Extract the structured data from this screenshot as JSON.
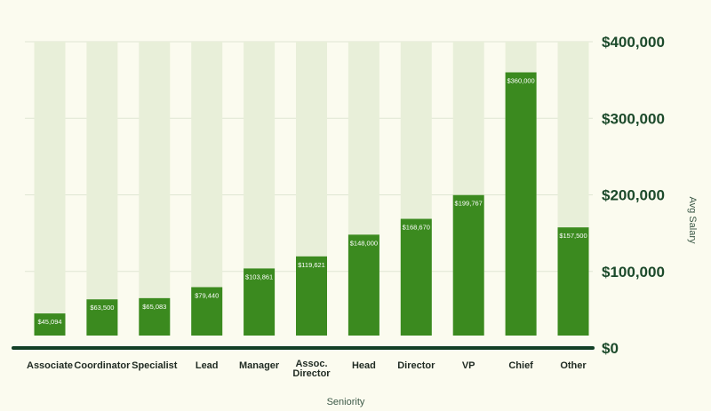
{
  "chart_data": {
    "type": "bar",
    "title": "",
    "xlabel": "Seniority",
    "ylabel": "Avg Salary",
    "ylim": [
      0,
      400000
    ],
    "yticks": [
      0,
      100000,
      200000,
      300000,
      400000
    ],
    "ytick_labels": [
      "$0",
      "$100,000",
      "$200,000",
      "$300,000",
      "$400,000"
    ],
    "grid": true,
    "categories": [
      "Associate",
      "Coordinator",
      "Specialist",
      "Lead",
      "Manager",
      "Assoc. Director",
      "Head",
      "Director",
      "VP",
      "Chief",
      "Other"
    ],
    "values": [
      45094,
      63500,
      65083,
      79440,
      103861,
      119621,
      148000,
      168670,
      199767,
      360000,
      157500
    ],
    "value_labels": [
      "$45,094",
      "$63,500",
      "$65,083",
      "$79,440",
      "$103,861",
      "$119,621",
      "$148,000",
      "$168,670",
      "$199,767",
      "$360,000",
      "$157,500"
    ],
    "colors": {
      "bar": "#3b8a1f",
      "track": "#e8efd9",
      "grid": "#dfe6d3",
      "axis": "#123f26",
      "background": "#fbfbef"
    }
  }
}
